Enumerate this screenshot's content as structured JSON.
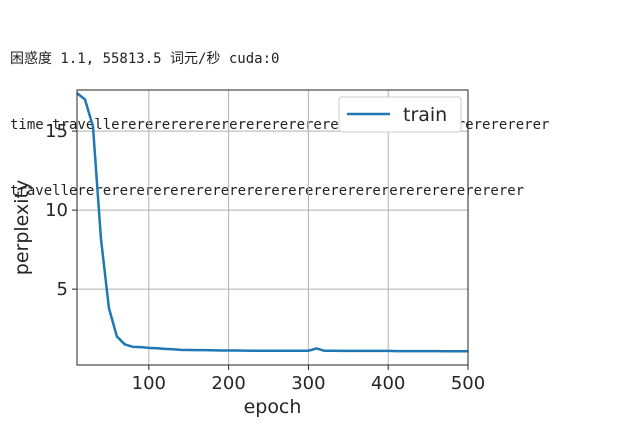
{
  "console": {
    "line1": "困惑度 1.1, 55813.5 词元/秒 cuda:0",
    "line2": "time travellerererererererererererererererererererererererererer",
    "line3": "travellererererererererererererererererererererererererererer"
  },
  "chart_data": {
    "type": "line",
    "title": "",
    "xlabel": "epoch",
    "ylabel": "perplexity",
    "xlim": [
      10,
      500
    ],
    "ylim": [
      0.2,
      17.6
    ],
    "xticks": [
      100,
      200,
      300,
      400,
      500
    ],
    "yticks": [
      5,
      10,
      15
    ],
    "grid": true,
    "legend_position": "top-right",
    "line_color": "#1f77b4",
    "series": [
      {
        "name": "train",
        "x": [
          10,
          20,
          30,
          40,
          50,
          60,
          70,
          80,
          90,
          100,
          110,
          120,
          130,
          140,
          150,
          160,
          170,
          180,
          190,
          200,
          210,
          220,
          230,
          240,
          250,
          260,
          270,
          280,
          290,
          300,
          310,
          320,
          330,
          340,
          350,
          360,
          370,
          380,
          390,
          400,
          410,
          420,
          430,
          440,
          450,
          460,
          470,
          480,
          490,
          500
        ],
        "y": [
          17.4,
          17.0,
          15.3,
          8.2,
          3.8,
          2.0,
          1.5,
          1.35,
          1.33,
          1.28,
          1.26,
          1.22,
          1.2,
          1.16,
          1.15,
          1.14,
          1.14,
          1.13,
          1.12,
          1.12,
          1.12,
          1.11,
          1.1,
          1.1,
          1.1,
          1.1,
          1.1,
          1.1,
          1.1,
          1.1,
          1.25,
          1.1,
          1.1,
          1.09,
          1.09,
          1.09,
          1.09,
          1.09,
          1.09,
          1.09,
          1.08,
          1.08,
          1.08,
          1.08,
          1.08,
          1.08,
          1.07,
          1.07,
          1.07,
          1.07
        ]
      }
    ]
  }
}
